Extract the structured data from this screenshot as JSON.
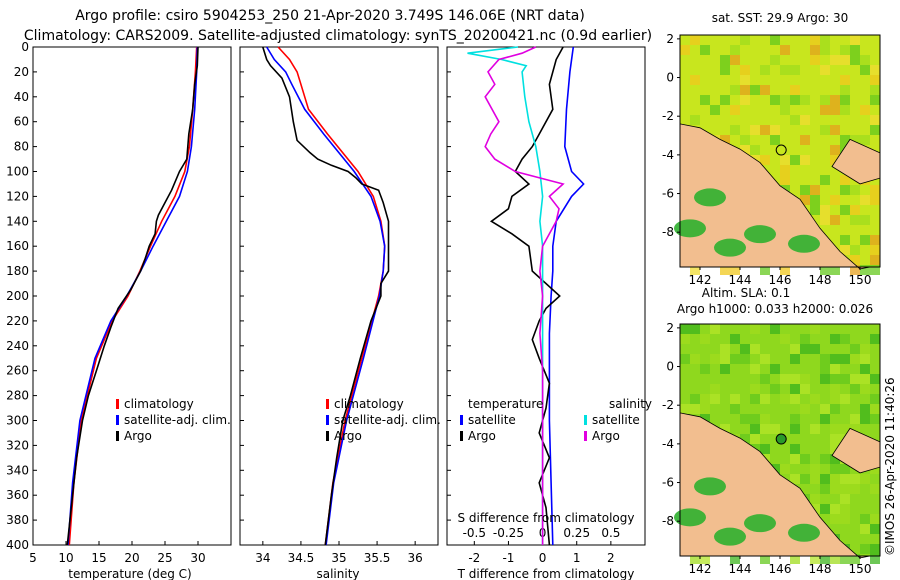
{
  "title_line1": "Argo profile: csiro 5904253_250 21-Apr-2020 3.749S 146.06E (NRT data)",
  "title_line2": "Climatology: CARS2009. Satellite-adjusted climatology: synTS_20200421.nc (0.9d earlier)",
  "colors": {
    "climatology": "#ff0000",
    "satellite": "#0000ff",
    "argo": "#000000",
    "sat_salinity": "#00e0e0",
    "argo_salinity": "#e000e0"
  },
  "chart_data": [
    {
      "type": "line",
      "name": "temperature",
      "xlabel": "temperature (deg C)",
      "xlim": [
        5,
        35
      ],
      "ylim": [
        400,
        0
      ],
      "xticks": [
        "5",
        "10",
        "15",
        "20",
        "25",
        "30"
      ],
      "yticks": [
        "0",
        "20",
        "40",
        "60",
        "80",
        "100",
        "120",
        "140",
        "160",
        "180",
        "200",
        "220",
        "240",
        "260",
        "280",
        "300",
        "320",
        "340",
        "360",
        "380",
        "400"
      ],
      "legend": [
        "climatology",
        "satellite-adj. clim.",
        "Argo"
      ],
      "series": [
        {
          "name": "climatology",
          "color": "#ff0000",
          "depth": [
            0,
            20,
            50,
            80,
            100,
            120,
            140,
            160,
            180,
            200,
            220,
            250,
            300,
            350,
            400
          ],
          "values": [
            29.8,
            29.6,
            29.2,
            28.7,
            28.0,
            26.5,
            24.5,
            22.8,
            21.2,
            19.4,
            17.0,
            14.6,
            12.3,
            11.2,
            10.5
          ]
        },
        {
          "name": "satellite-adj. clim.",
          "color": "#0000ff",
          "depth": [
            0,
            20,
            50,
            80,
            100,
            120,
            140,
            160,
            180,
            200,
            220,
            250,
            300,
            350,
            400
          ],
          "values": [
            29.9,
            29.8,
            29.5,
            29.0,
            28.4,
            27.2,
            25.2,
            23.2,
            21.3,
            19.2,
            16.8,
            14.4,
            12.1,
            11.0,
            10.3
          ]
        },
        {
          "name": "Argo",
          "color": "#000000",
          "depth": [
            0,
            15,
            30,
            50,
            70,
            90,
            100,
            115,
            125,
            135,
            140,
            150,
            160,
            170,
            180,
            195,
            210,
            225,
            240,
            260,
            280,
            300,
            330,
            360,
            400
          ],
          "values": [
            30.0,
            29.9,
            29.5,
            29.2,
            28.6,
            28.3,
            27.2,
            26.0,
            25.0,
            24.0,
            23.7,
            23.5,
            22.6,
            22.0,
            21.3,
            19.8,
            17.9,
            16.8,
            15.8,
            14.6,
            13.4,
            12.5,
            11.6,
            11.0,
            10.2
          ]
        }
      ]
    },
    {
      "type": "line",
      "name": "salinity",
      "xlabel": "salinity",
      "xlim": [
        33.7,
        36.3
      ],
      "ylim": [
        400,
        0
      ],
      "xticks": [
        "34",
        "34.5",
        "35",
        "35.5",
        "36"
      ],
      "legend": [
        "climatology",
        "satellite-adj. clim.",
        "Argo"
      ],
      "series": [
        {
          "name": "climatology",
          "color": "#ff0000",
          "depth": [
            0,
            10,
            20,
            30,
            50,
            70,
            100,
            120,
            140,
            160,
            180,
            200,
            250,
            300,
            350,
            400
          ],
          "values": [
            34.2,
            34.35,
            34.45,
            34.5,
            34.6,
            34.85,
            35.25,
            35.45,
            35.55,
            35.6,
            35.58,
            35.52,
            35.3,
            35.08,
            34.92,
            34.82
          ]
        },
        {
          "name": "satellite-adj. clim.",
          "color": "#0000ff",
          "depth": [
            0,
            10,
            20,
            30,
            50,
            70,
            100,
            120,
            140,
            160,
            180,
            200,
            250,
            300,
            350,
            400
          ],
          "values": [
            34.05,
            34.15,
            34.3,
            34.38,
            34.55,
            34.8,
            35.2,
            35.42,
            35.54,
            35.6,
            35.58,
            35.53,
            35.32,
            35.1,
            34.93,
            34.83
          ]
        },
        {
          "name": "Argo",
          "color": "#000000",
          "depth": [
            0,
            10,
            15,
            25,
            40,
            60,
            75,
            85,
            90,
            95,
            100,
            105,
            110,
            115,
            125,
            140,
            160,
            180,
            190,
            200,
            220,
            250,
            280,
            300,
            330,
            360,
            400
          ],
          "values": [
            34.0,
            34.05,
            34.1,
            34.25,
            34.35,
            34.4,
            34.45,
            34.62,
            34.72,
            34.9,
            35.12,
            35.22,
            35.3,
            35.52,
            35.58,
            35.65,
            35.65,
            35.65,
            35.55,
            35.55,
            35.42,
            35.28,
            35.15,
            35.05,
            34.97,
            34.9,
            34.82
          ]
        }
      ]
    },
    {
      "type": "line",
      "name": "difference",
      "xlabel": "T difference from climatology",
      "xlabel2": "S difference from climatology",
      "xlim": [
        -2.8,
        3.0
      ],
      "xlim2": [
        -0.7,
        0.75
      ],
      "ylim": [
        400,
        0
      ],
      "xticks": [
        "-2",
        "-1",
        "0",
        "1",
        "2"
      ],
      "xticks2": [
        "-0.5",
        "-0.25",
        "0",
        "0.25",
        "0.5"
      ],
      "legend_title_t": "temperature",
      "legend_title_s": "salinity",
      "legend": [
        "satellite",
        "Argo",
        "satellite",
        "Argo"
      ],
      "series": [
        {
          "name": "T satellite",
          "color": "#0000ff",
          "axis": "T",
          "depth": [
            0,
            20,
            50,
            80,
            100,
            110,
            120,
            140,
            160,
            180,
            200,
            230,
            260,
            300,
            350,
            400
          ],
          "values": [
            0.9,
            0.8,
            0.7,
            0.65,
            0.85,
            1.2,
            0.85,
            0.4,
            0.3,
            0.3,
            0.25,
            0.2,
            0.2,
            0.2,
            0.25,
            0.3
          ]
        },
        {
          "name": "T Argo",
          "color": "#000000",
          "axis": "T",
          "depth": [
            0,
            10,
            30,
            50,
            70,
            80,
            90,
            100,
            110,
            120,
            130,
            140,
            150,
            160,
            180,
            200,
            210,
            220,
            235,
            250,
            270,
            290,
            310,
            330,
            350,
            370,
            400
          ],
          "values": [
            0.6,
            0.4,
            0.2,
            0.3,
            -0.1,
            -0.3,
            -0.6,
            -0.8,
            -0.4,
            -0.9,
            -1.0,
            -1.5,
            -0.9,
            -0.4,
            -0.3,
            0.5,
            0.1,
            -0.1,
            -0.3,
            -0.1,
            0.2,
            0.1,
            -0.1,
            0.2,
            -0.1,
            0.1,
            0.2
          ]
        },
        {
          "name": "S satellite",
          "color": "#00e0e0",
          "axis": "S",
          "depth": [
            0,
            5,
            10,
            15,
            20,
            40,
            60,
            80,
            100,
            120,
            140,
            160,
            200,
            250,
            300,
            350,
            400
          ],
          "values": [
            -0.18,
            -0.55,
            -0.3,
            -0.12,
            -0.15,
            -0.13,
            -0.1,
            -0.05,
            -0.02,
            0.0,
            -0.02,
            0.0,
            0.0,
            0.0,
            0.0,
            0.0,
            0.0
          ]
        },
        {
          "name": "S Argo",
          "color": "#e000e0",
          "axis": "S",
          "depth": [
            0,
            5,
            10,
            20,
            30,
            40,
            60,
            70,
            80,
            90,
            100,
            110,
            120,
            130,
            140,
            150,
            160,
            180,
            200,
            230,
            260,
            300,
            340,
            370,
            400
          ],
          "values": [
            -0.05,
            -0.15,
            -0.32,
            -0.4,
            -0.35,
            -0.42,
            -0.32,
            -0.38,
            -0.42,
            -0.35,
            -0.2,
            0.15,
            0.05,
            0.12,
            0.1,
            0.05,
            0.0,
            -0.02,
            0.0,
            -0.02,
            0.0,
            0.0,
            0.0,
            0.0,
            0.0
          ]
        }
      ]
    },
    {
      "type": "heatmap",
      "name": "sst_map",
      "title": "sat. SST: 29.9 Argo: 30",
      "xlim": [
        141,
        151
      ],
      "ylim": [
        -9.8,
        2.2
      ],
      "xticks": [
        "142",
        "144",
        "146",
        "148",
        "150"
      ],
      "yticks": [
        "2",
        "0",
        "-2",
        "-4",
        "-6",
        "-8"
      ],
      "argo_position": [
        146.06,
        -3.749
      ]
    },
    {
      "type": "heatmap",
      "name": "sla_map",
      "title": "Altim. SLA: 0.1",
      "subtitle": "Argo h1000: 0.033 h2000: 0.026",
      "xlim": [
        141,
        151
      ],
      "ylim": [
        -9.8,
        2.2
      ],
      "xticks": [
        "142",
        "144",
        "146",
        "148",
        "150"
      ],
      "yticks": [
        "2",
        "0",
        "-2",
        "-4",
        "-6",
        "-8"
      ],
      "argo_position": [
        146.06,
        -3.749
      ]
    }
  ],
  "credit": "©IMOS 26-Apr-2020 11:40:26"
}
